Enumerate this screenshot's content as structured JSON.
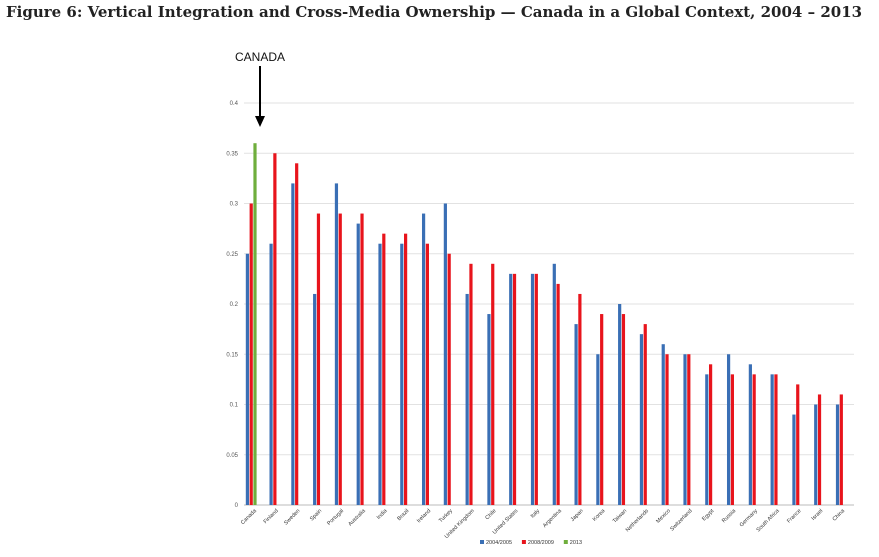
{
  "figure_title": "Figure 6: Vertical Integration and Cross-Media Ownership — Canada in a Global Context, 2004 – 2013",
  "chart_data": {
    "type": "bar",
    "title": "",
    "xlabel": "",
    "ylabel": "",
    "ylim": [
      0,
      0.4
    ],
    "yticks": [
      "0",
      "0.05",
      "0.1",
      "0.15",
      "0.2",
      "0.25",
      "0.3",
      "0.35",
      "0.4"
    ],
    "grid": true,
    "legend_position": "bottom",
    "annotation": "CANADA",
    "categories": [
      "Canada",
      "Finland",
      "Sweden",
      "Spain",
      "Portugal",
      "Australia",
      "India",
      "Brazil",
      "Ireland",
      "Turkey",
      "United Kingdom",
      "Chile",
      "United States",
      "Italy",
      "Argentina",
      "Japan",
      "Korea",
      "Taiwan",
      "Netherlands",
      "Mexico",
      "Switzerland",
      "Egypt",
      "Russia",
      "Germany",
      "South Africa",
      "France",
      "Israel",
      "China"
    ],
    "series": [
      {
        "name": "2004/2005",
        "color": "#3a6fb5",
        "values": [
          0.25,
          0.26,
          0.32,
          0.21,
          0.32,
          0.28,
          0.26,
          0.26,
          0.29,
          0.3,
          0.21,
          0.19,
          0.23,
          0.23,
          0.24,
          0.18,
          0.15,
          0.2,
          0.17,
          0.16,
          0.15,
          0.13,
          0.15,
          0.14,
          0.13,
          0.09,
          0.1,
          0.1
        ]
      },
      {
        "name": "2008/2009",
        "color": "#e8141c",
        "values": [
          0.3,
          0.35,
          0.34,
          0.29,
          0.29,
          0.29,
          0.27,
          0.27,
          0.26,
          0.25,
          0.24,
          0.24,
          0.23,
          0.23,
          0.22,
          0.21,
          0.19,
          0.19,
          0.18,
          0.15,
          0.15,
          0.14,
          0.13,
          0.13,
          0.13,
          0.12,
          0.11,
          0.11
        ]
      },
      {
        "name": "2013",
        "color": "#6fae3c",
        "values": [
          0.36,
          null,
          null,
          null,
          null,
          null,
          null,
          null,
          null,
          null,
          null,
          null,
          null,
          null,
          null,
          null,
          null,
          null,
          null,
          null,
          null,
          null,
          null,
          null,
          null,
          null,
          null,
          null
        ]
      }
    ]
  }
}
